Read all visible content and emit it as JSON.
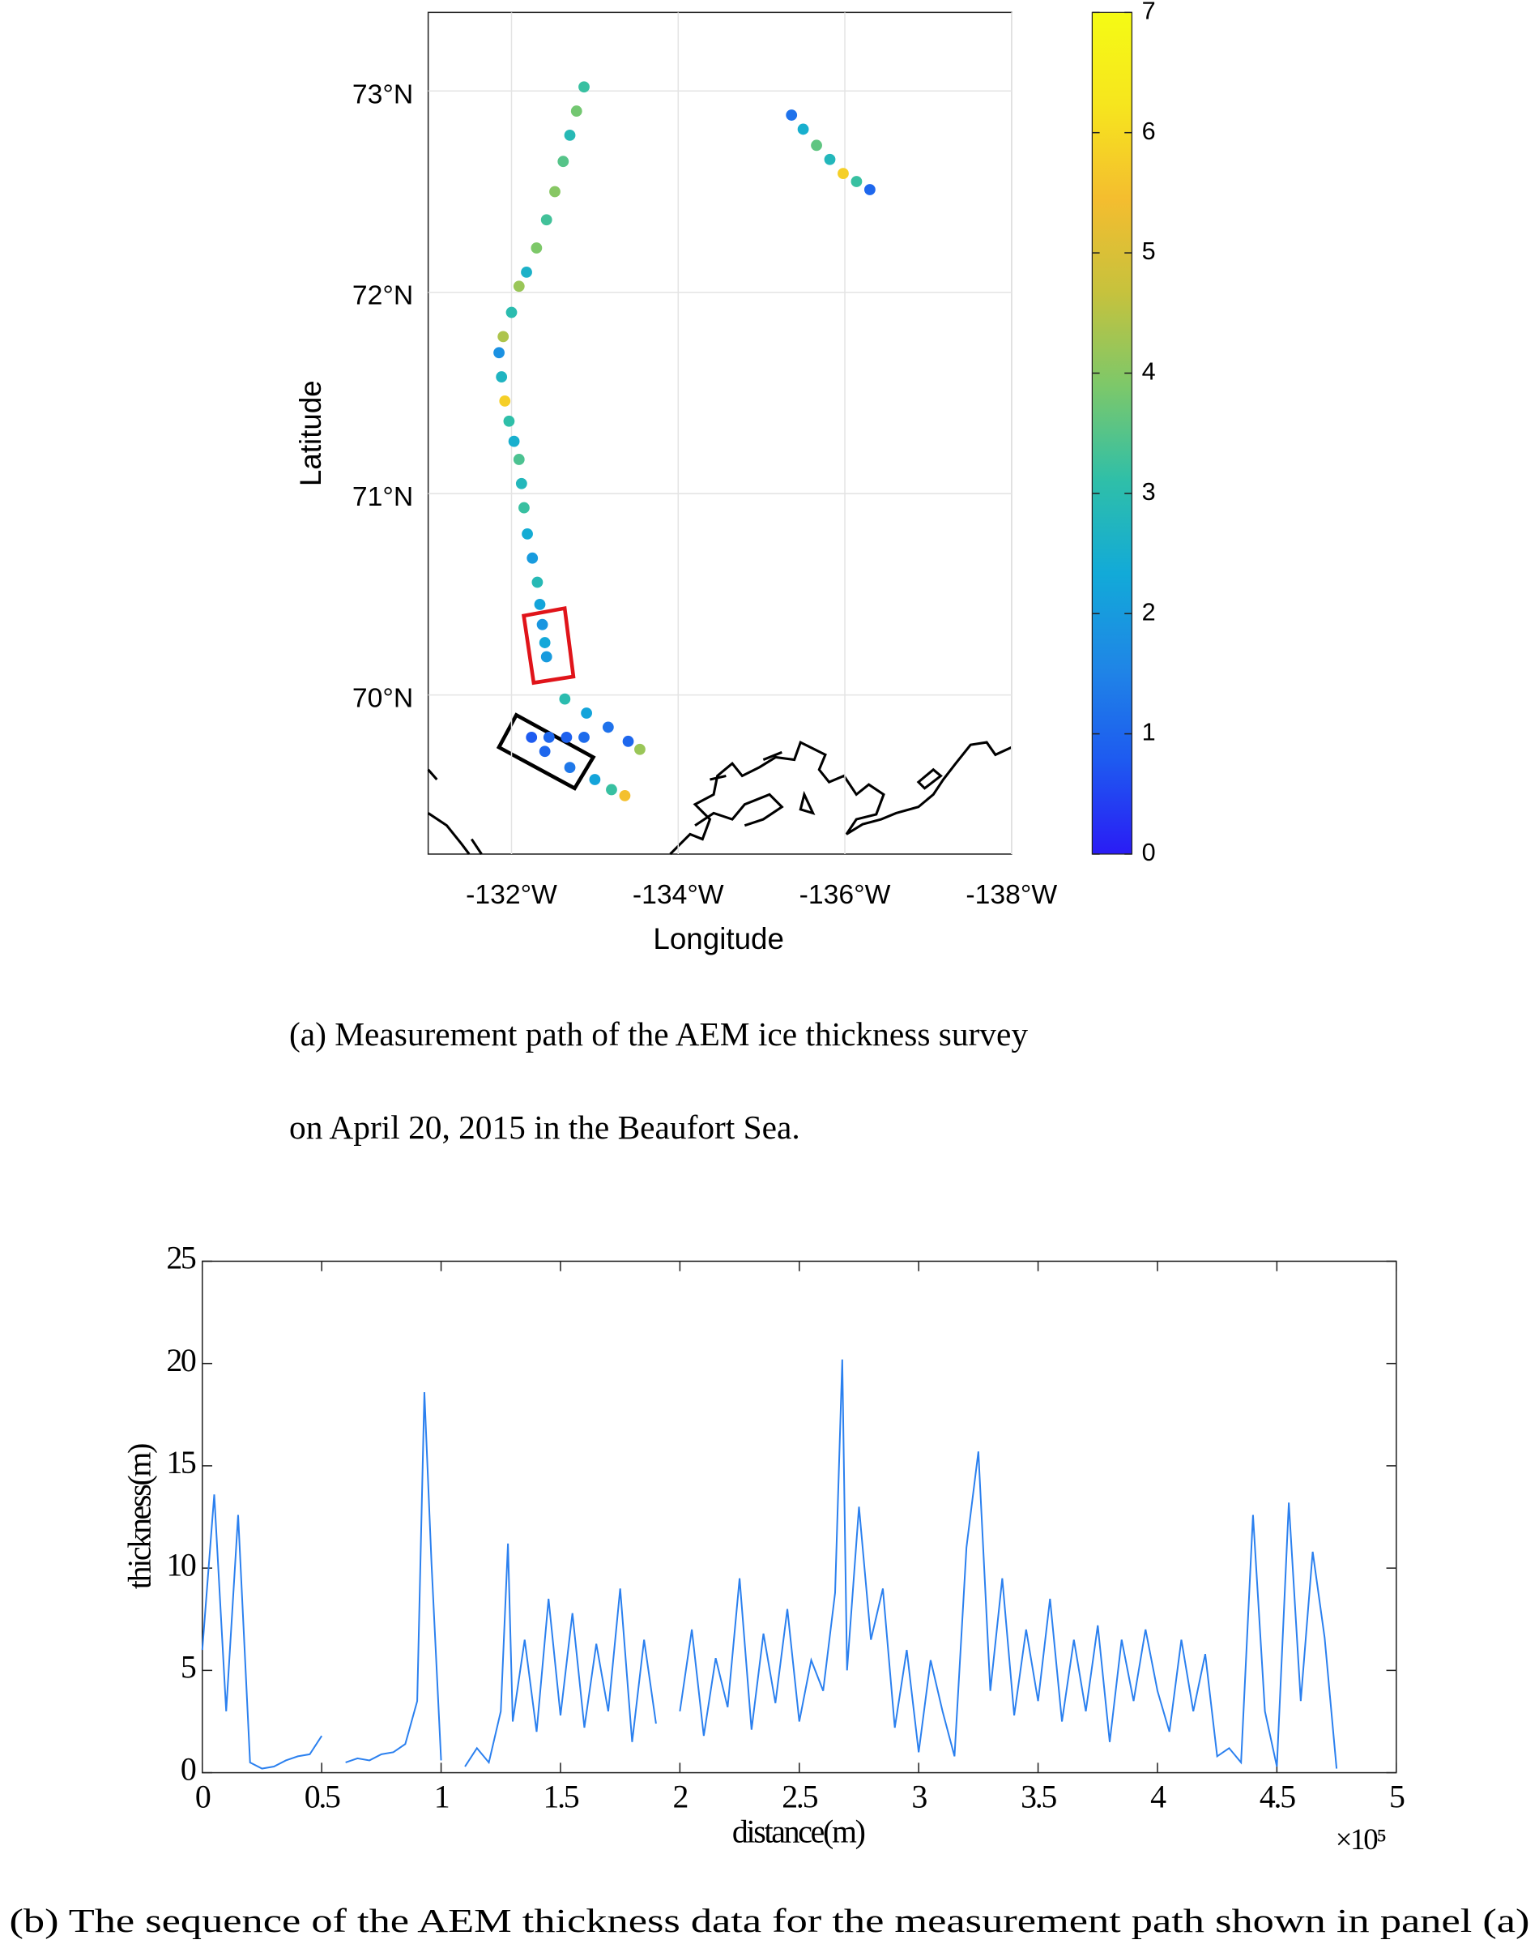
{
  "chart_data": [
    {
      "type": "scatter",
      "xlabel": "Longitude",
      "ylabel": "Latitude",
      "xlim": [
        -131,
        -138
      ],
      "ylim": [
        69.21,
        73.39
      ],
      "xticks": [
        {
          "value": -132,
          "label": "-132°W"
        },
        {
          "value": -134,
          "label": "-134°W"
        },
        {
          "value": -136,
          "label": "-136°W"
        },
        {
          "value": -138,
          "label": "-138°W"
        }
      ],
      "yticks": [
        {
          "value": 70,
          "label": "70°N"
        },
        {
          "value": 71,
          "label": "71°N"
        },
        {
          "value": 72,
          "label": "72°N"
        },
        {
          "value": 73,
          "label": "73°N"
        }
      ],
      "grid": true,
      "clim": [
        0,
        7
      ],
      "cticks": [
        0,
        1,
        2,
        3,
        4,
        5,
        6,
        7
      ],
      "colormap": [
        "#2a1cf5",
        "#1e5af0",
        "#1f86e6",
        "#12aad8",
        "#2fbfa8",
        "#7cc86a",
        "#c6c23d",
        "#f4bd2f",
        "#f6e51e",
        "#f5fb14"
      ],
      "x": [
        -132.87,
        -132.78,
        -132.7,
        -132.62,
        -132.52,
        -132.42,
        -132.3,
        -132.18,
        -132.09,
        -132.0,
        -131.9,
        -131.85,
        -131.88,
        -131.92,
        -131.97,
        -132.03,
        -132.09,
        -132.12,
        -132.15,
        -132.19,
        -132.25,
        -132.31,
        -132.34,
        -132.37,
        -132.4,
        -132.42,
        -135.36,
        -135.5,
        -135.66,
        -135.82,
        -135.98,
        -136.14,
        -136.3,
        -132.64,
        -132.9,
        -133.16,
        -133.4,
        -133.54,
        -132.24,
        -132.45,
        -132.66,
        -132.87,
        -132.4,
        -132.7,
        -133.0,
        -133.2,
        -133.36
      ],
      "y": [
        73.02,
        72.9,
        72.78,
        72.65,
        72.5,
        72.36,
        72.22,
        72.1,
        72.03,
        71.9,
        71.78,
        71.7,
        71.58,
        71.46,
        71.36,
        71.26,
        71.17,
        71.05,
        70.93,
        70.8,
        70.68,
        70.56,
        70.45,
        70.35,
        70.26,
        70.19,
        72.88,
        72.81,
        72.73,
        72.66,
        72.59,
        72.55,
        72.51,
        69.98,
        69.91,
        69.84,
        69.77,
        69.73,
        69.79,
        69.79,
        69.79,
        69.79,
        69.72,
        69.64,
        69.58,
        69.53,
        69.5
      ],
      "values": [
        3.2,
        3.8,
        2.9,
        3.5,
        4.0,
        3.3,
        3.9,
        2.6,
        4.2,
        3.0,
        4.4,
        1.8,
        2.7,
        5.8,
        3.1,
        2.5,
        3.4,
        2.8,
        3.2,
        2.4,
        2.0,
        2.9,
        2.2,
        1.9,
        2.3,
        2.0,
        1.2,
        2.5,
        3.6,
        2.8,
        5.8,
        3.2,
        1.0,
        3.0,
        2.2,
        1.2,
        1.0,
        4.2,
        0.8,
        1.0,
        0.9,
        1.1,
        1.0,
        1.3,
        2.2,
        3.2,
        5.5
      ],
      "caption": [
        "(a) Measurement path of the AEM ice thickness survey",
        "on April 20, 2015 in the Beaufort Sea."
      ]
    },
    {
      "type": "line",
      "xlabel": "distance(m)",
      "ylabel": "thickness(m)",
      "x_multiplier": "×10⁵",
      "color": "#2b80ef",
      "xlim": [
        0,
        500000
      ],
      "ylim": [
        0,
        25
      ],
      "xticks": [
        0,
        {
          "value": 50000,
          "label": "0.5"
        },
        {
          "value": 100000,
          "label": "1"
        },
        {
          "value": 150000,
          "label": "1.5"
        },
        {
          "value": 200000,
          "label": "2"
        },
        {
          "value": 250000,
          "label": "2.5"
        },
        {
          "value": 300000,
          "label": "3"
        },
        {
          "value": 350000,
          "label": "3.5"
        },
        {
          "value": 400000,
          "label": "4"
        },
        {
          "value": 450000,
          "label": "4.5"
        },
        {
          "value": 500000,
          "label": "5"
        }
      ],
      "yticks": [
        0,
        5,
        10,
        15,
        20,
        25
      ],
      "x": [
        0,
        5000,
        10000,
        15000,
        20000,
        25000,
        30000,
        35000,
        40000,
        45000,
        50000,
        55000,
        60000,
        65000,
        70000,
        75000,
        80000,
        85000,
        90000,
        93000,
        96000,
        100000,
        105000,
        110000,
        115000,
        120000,
        125000,
        128000,
        130000,
        135000,
        140000,
        145000,
        150000,
        155000,
        160000,
        165000,
        170000,
        175000,
        180000,
        185000,
        190000,
        195000,
        200000,
        205000,
        210000,
        215000,
        220000,
        225000,
        230000,
        235000,
        240000,
        245000,
        250000,
        255000,
        260000,
        265000,
        268000,
        270000,
        275000,
        280000,
        285000,
        290000,
        295000,
        300000,
        305000,
        310000,
        315000,
        320000,
        325000,
        330000,
        335000,
        340000,
        345000,
        350000,
        355000,
        360000,
        365000,
        370000,
        375000,
        380000,
        385000,
        390000,
        395000,
        400000,
        405000,
        410000,
        415000,
        420000,
        425000,
        430000,
        435000,
        440000,
        445000,
        450000,
        455000,
        460000,
        465000,
        470000,
        475000
      ],
      "values": [
        6.0,
        13.6,
        3.0,
        12.6,
        0.5,
        0.2,
        0.3,
        0.6,
        0.8,
        0.9,
        1.8,
        null,
        0.5,
        0.7,
        0.6,
        0.9,
        1.0,
        1.4,
        3.5,
        18.6,
        10.2,
        0.6,
        null,
        0.3,
        1.2,
        0.5,
        3.0,
        11.2,
        2.5,
        6.5,
        2.0,
        8.5,
        2.8,
        7.8,
        2.2,
        6.3,
        3.0,
        9.0,
        1.5,
        6.5,
        2.4,
        null,
        3.0,
        7.0,
        1.8,
        5.6,
        3.2,
        9.5,
        2.1,
        6.8,
        3.4,
        8.0,
        2.5,
        5.5,
        4.0,
        8.8,
        20.2,
        5.0,
        13.0,
        6.5,
        9.0,
        2.2,
        6.0,
        1.0,
        5.5,
        3.0,
        0.8,
        11.0,
        15.7,
        4.0,
        9.5,
        2.8,
        7.0,
        3.5,
        8.5,
        2.5,
        6.5,
        3.0,
        7.2,
        1.5,
        6.5,
        3.5,
        7.0,
        4.0,
        2.0,
        6.5,
        3.0,
        5.8,
        0.8,
        1.2,
        0.5,
        12.6,
        3.0,
        0.3,
        13.2,
        3.5,
        10.8,
        6.6,
        0.2
      ],
      "caption": "(b) The sequence of the AEM thickness data for the measurement path shown in panel (a)"
    }
  ]
}
